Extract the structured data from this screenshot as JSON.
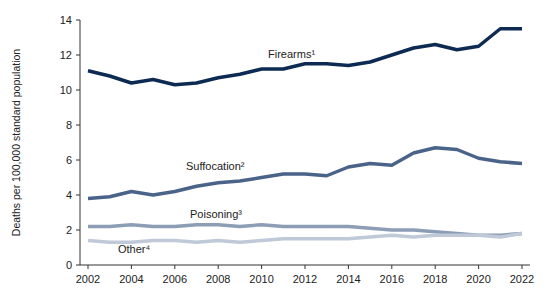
{
  "chart_data": {
    "type": "line",
    "y_label": "Deaths per 100,000 standard population",
    "x": [
      2002,
      2003,
      2004,
      2005,
      2006,
      2007,
      2008,
      2009,
      2010,
      2011,
      2012,
      2013,
      2014,
      2015,
      2016,
      2017,
      2018,
      2019,
      2020,
      2021,
      2022
    ],
    "xlim": [
      2002,
      2022
    ],
    "xticks": [
      2002,
      2004,
      2006,
      2008,
      2010,
      2012,
      2014,
      2016,
      2018,
      2020,
      2022
    ],
    "ylim": [
      0,
      14
    ],
    "yticks": [
      0,
      2,
      4,
      6,
      8,
      10,
      12,
      14
    ],
    "grid": false,
    "series": [
      {
        "name": "Firearms¹",
        "color": "#0d2b52",
        "values": [
          11.1,
          10.8,
          10.4,
          10.6,
          10.3,
          10.4,
          10.7,
          10.9,
          11.2,
          11.2,
          11.5,
          11.5,
          11.4,
          11.6,
          12.0,
          12.4,
          12.6,
          12.3,
          12.5,
          13.5,
          13.5
        ]
      },
      {
        "name": "Suffocation²",
        "color": "#4a6389",
        "values": [
          3.8,
          3.9,
          4.2,
          4.0,
          4.2,
          4.5,
          4.7,
          4.8,
          5.0,
          5.2,
          5.2,
          5.1,
          5.6,
          5.8,
          5.7,
          6.4,
          6.7,
          6.6,
          6.1,
          5.9,
          5.8
        ]
      },
      {
        "name": "Poisoning³",
        "color": "#8d9db6",
        "values": [
          2.2,
          2.2,
          2.3,
          2.2,
          2.2,
          2.3,
          2.3,
          2.2,
          2.3,
          2.2,
          2.2,
          2.2,
          2.2,
          2.1,
          2.0,
          2.0,
          1.9,
          1.8,
          1.7,
          1.7,
          1.8
        ]
      },
      {
        "name": "Other⁴",
        "color": "#bfc9d8",
        "values": [
          1.4,
          1.3,
          1.3,
          1.4,
          1.4,
          1.3,
          1.4,
          1.3,
          1.4,
          1.5,
          1.5,
          1.5,
          1.5,
          1.6,
          1.7,
          1.6,
          1.7,
          1.7,
          1.7,
          1.6,
          1.8
        ]
      }
    ]
  }
}
